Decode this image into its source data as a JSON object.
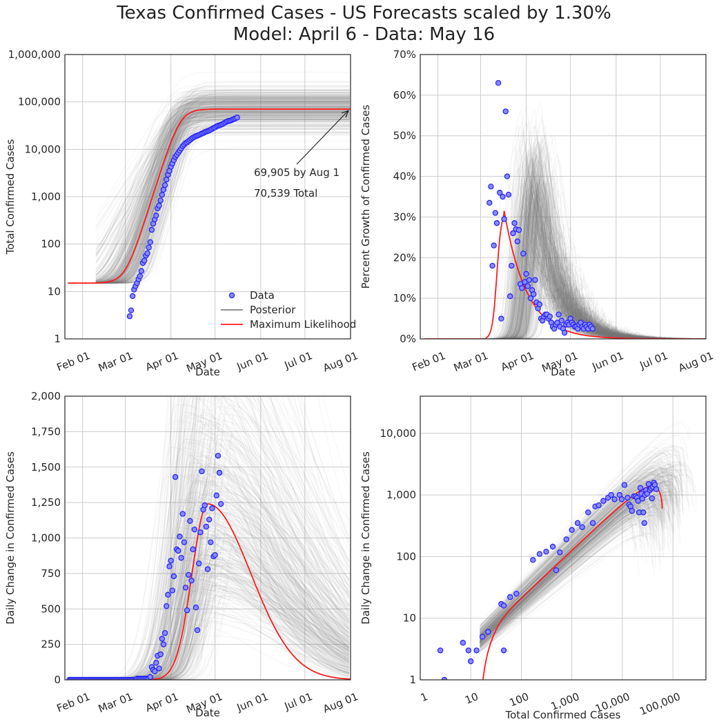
{
  "title_line1": "Texas Confirmed Cases - US Forecasts scaled by 1.30%",
  "title_line2": "Model: April 6 - Data: May 16",
  "colors": {
    "data_edge": "#1f1fff",
    "data_fill": "#8a8aff",
    "posterior": "#808080",
    "ml": "#ff1a1a",
    "grid": "#cccccc"
  },
  "chart_data": [
    {
      "id": "total",
      "type": "line",
      "xlabel": "Date",
      "ylabel": "Total Confirmed Cases",
      "yscale": "log",
      "ylim": [
        1,
        1000000
      ],
      "xlim": [
        "2020-01-20",
        "2020-08-01"
      ],
      "x_ticks": [
        "Feb 01",
        "Mar 01",
        "Apr 01",
        "May 01",
        "Jun 01",
        "Jul 01",
        "Aug 01"
      ],
      "y_ticks": [
        "1",
        "10",
        "100",
        "1,000",
        "10,000",
        "100,000",
        "1,000,000"
      ],
      "legend": [
        "Data",
        "Posterior",
        "Maximum Likelihood"
      ],
      "legend_position": "lower right",
      "annotations": [
        "69,905 by Aug 1",
        "70,539 Total"
      ],
      "data_points": [
        [
          "2020-03-04",
          3
        ],
        [
          "2020-03-05",
          4
        ],
        [
          "2020-03-06",
          8
        ],
        [
          "2020-03-07",
          11
        ],
        [
          "2020-03-08",
          13
        ],
        [
          "2020-03-09",
          15
        ],
        [
          "2020-03-10",
          18
        ],
        [
          "2020-03-11",
          21
        ],
        [
          "2020-03-12",
          27
        ],
        [
          "2020-03-13",
          40
        ],
        [
          "2020-03-14",
          45
        ],
        [
          "2020-03-15",
          57
        ],
        [
          "2020-03-16",
          64
        ],
        [
          "2020-03-17",
          85
        ],
        [
          "2020-03-18",
          110
        ],
        [
          "2020-03-19",
          200
        ],
        [
          "2020-03-20",
          270
        ],
        [
          "2020-03-21",
          330
        ],
        [
          "2020-03-22",
          400
        ],
        [
          "2020-03-23",
          570
        ],
        [
          "2020-03-24",
          650
        ],
        [
          "2020-03-25",
          830
        ],
        [
          "2020-03-26",
          1100
        ],
        [
          "2020-03-27",
          1400
        ],
        [
          "2020-03-28",
          1750
        ],
        [
          "2020-03-29",
          2300
        ],
        [
          "2020-03-30",
          2900
        ],
        [
          "2020-03-31",
          3500
        ],
        [
          "2020-04-01",
          4300
        ],
        [
          "2020-04-02",
          5000
        ],
        [
          "2020-04-03",
          5900
        ],
        [
          "2020-04-04",
          6900
        ],
        [
          "2020-04-05",
          7600
        ],
        [
          "2020-04-06",
          8500
        ],
        [
          "2020-04-07",
          9400
        ],
        [
          "2020-04-08",
          10400
        ],
        [
          "2020-04-09",
          11600
        ],
        [
          "2020-04-10",
          12500
        ],
        [
          "2020-04-11",
          13500
        ],
        [
          "2020-04-12",
          14000
        ],
        [
          "2020-04-13",
          14900
        ],
        [
          "2020-04-14",
          15700
        ],
        [
          "2020-04-15",
          16700
        ],
        [
          "2020-04-16",
          17500
        ],
        [
          "2020-04-17",
          18300
        ],
        [
          "2020-04-18",
          19000
        ],
        [
          "2020-04-19",
          19500
        ],
        [
          "2020-04-20",
          20000
        ],
        [
          "2020-04-21",
          20700
        ],
        [
          "2020-04-22",
          21500
        ],
        [
          "2020-04-23",
          22000
        ],
        [
          "2020-04-24",
          23000
        ],
        [
          "2020-04-25",
          23700
        ],
        [
          "2020-04-26",
          24300
        ],
        [
          "2020-04-27",
          25000
        ],
        [
          "2020-04-28",
          25900
        ],
        [
          "2020-04-29",
          27000
        ],
        [
          "2020-04-30",
          28100
        ],
        [
          "2020-05-01",
          29000
        ],
        [
          "2020-05-02",
          30500
        ],
        [
          "2020-05-03",
          31500
        ],
        [
          "2020-05-04",
          32000
        ],
        [
          "2020-05-05",
          33000
        ],
        [
          "2020-05-06",
          34000
        ],
        [
          "2020-05-07",
          35500
        ],
        [
          "2020-05-08",
          37000
        ],
        [
          "2020-05-09",
          38500
        ],
        [
          "2020-05-10",
          39500
        ],
        [
          "2020-05-11",
          40000
        ],
        [
          "2020-05-12",
          41000
        ],
        [
          "2020-05-13",
          42500
        ],
        [
          "2020-05-14",
          43800
        ],
        [
          "2020-05-15",
          45200
        ],
        [
          "2020-05-16",
          46900
        ]
      ],
      "ml_curve": {
        "model": "logistic",
        "floor": 15,
        "K": 70539,
        "r": 0.23,
        "t0": "2020-04-07",
        "start": "2020-01-22"
      }
    },
    {
      "id": "growth",
      "type": "line",
      "xlabel": "Date",
      "ylabel": "Percent Growth of Confirmed Cases",
      "ylim": [
        0,
        70
      ],
      "xlim": [
        "2020-01-20",
        "2020-08-01"
      ],
      "x_ticks": [
        "Feb 01",
        "Mar 01",
        "Apr 01",
        "May 01",
        "Jun 01",
        "Jul 01",
        "Aug 01"
      ],
      "y_ticks": [
        "0%",
        "10%",
        "20%",
        "30%",
        "40%",
        "50%",
        "60%",
        "70%"
      ],
      "data_points": [
        [
          "2020-03-07",
          33.5
        ],
        [
          "2020-03-08",
          37.5
        ],
        [
          "2020-03-09",
          18
        ],
        [
          "2020-03-10",
          23
        ],
        [
          "2020-03-11",
          31
        ],
        [
          "2020-03-12",
          28.5
        ],
        [
          "2020-03-13",
          63
        ],
        [
          "2020-03-14",
          36
        ],
        [
          "2020-03-15",
          5
        ],
        [
          "2020-03-16",
          35
        ],
        [
          "2020-03-17",
          29.5
        ],
        [
          "2020-03-18",
          56
        ],
        [
          "2020-03-19",
          40
        ],
        [
          "2020-03-20",
          35.5
        ],
        [
          "2020-03-21",
          10.5
        ],
        [
          "2020-03-22",
          18
        ],
        [
          "2020-03-23",
          26
        ],
        [
          "2020-03-24",
          28.5
        ],
        [
          "2020-03-25",
          27
        ],
        [
          "2020-03-26",
          24
        ],
        [
          "2020-03-27",
          26.8
        ],
        [
          "2020-03-28",
          13.5
        ],
        [
          "2020-03-29",
          12.5
        ],
        [
          "2020-03-30",
          21
        ],
        [
          "2020-03-31",
          14
        ],
        [
          "2020-04-01",
          16
        ],
        [
          "2020-04-02",
          13
        ],
        [
          "2020-04-03",
          14.5
        ],
        [
          "2020-04-04",
          10
        ],
        [
          "2020-04-05",
          12
        ],
        [
          "2020-04-06",
          11
        ],
        [
          "2020-04-07",
          14.5
        ],
        [
          "2020-04-08",
          9
        ],
        [
          "2020-04-09",
          7.5
        ],
        [
          "2020-04-10",
          8.5
        ],
        [
          "2020-04-11",
          5
        ],
        [
          "2020-04-12",
          4.5
        ],
        [
          "2020-04-13",
          5.5
        ],
        [
          "2020-04-14",
          6
        ],
        [
          "2020-04-15",
          6
        ],
        [
          "2020-04-16",
          5
        ],
        [
          "2020-04-17",
          5.5
        ],
        [
          "2020-04-18",
          4
        ],
        [
          "2020-04-19",
          3
        ],
        [
          "2020-04-20",
          2.5
        ],
        [
          "2020-04-21",
          3.5
        ],
        [
          "2020-04-22",
          4
        ],
        [
          "2020-04-23",
          6
        ],
        [
          "2020-04-24",
          3
        ],
        [
          "2020-04-25",
          4.5
        ],
        [
          "2020-04-26",
          2.5
        ],
        [
          "2020-04-27",
          1.5
        ],
        [
          "2020-04-28",
          3.5
        ],
        [
          "2020-04-29",
          4
        ],
        [
          "2020-04-30",
          3.5
        ],
        [
          "2020-05-01",
          5
        ],
        [
          "2020-05-02",
          4
        ],
        [
          "2020-05-03",
          3.5
        ],
        [
          "2020-05-04",
          3
        ],
        [
          "2020-05-05",
          3
        ],
        [
          "2020-05-06",
          2.5
        ],
        [
          "2020-05-07",
          3.5
        ],
        [
          "2020-05-08",
          4
        ],
        [
          "2020-05-09",
          3
        ],
        [
          "2020-05-10",
          2.5
        ],
        [
          "2020-05-11",
          3.5
        ],
        [
          "2020-05-12",
          3
        ],
        [
          "2020-05-13",
          2.5
        ],
        [
          "2020-05-14",
          3.5
        ],
        [
          "2020-05-15",
          3
        ],
        [
          "2020-05-16",
          2.5
        ]
      ]
    },
    {
      "id": "daily",
      "type": "line",
      "xlabel": "Date",
      "ylabel": "Daily Change in Confirmed Cases",
      "ylim": [
        0,
        2000
      ],
      "xlim": [
        "2020-01-20",
        "2020-08-01"
      ],
      "x_ticks": [
        "Feb 01",
        "Mar 01",
        "Apr 01",
        "May 01",
        "Jun 01",
        "Jul 01",
        "Aug 01"
      ],
      "y_ticks": [
        "0",
        "250",
        "500",
        "750",
        "1,000",
        "1,250",
        "1,500",
        "1,750",
        "2,000"
      ],
      "data_points": [
        [
          "2020-03-18",
          20
        ],
        [
          "2020-03-19",
          90
        ],
        [
          "2020-03-20",
          70
        ],
        [
          "2020-03-21",
          60
        ],
        [
          "2020-03-22",
          120
        ],
        [
          "2020-03-23",
          170
        ],
        [
          "2020-03-24",
          80
        ],
        [
          "2020-03-25",
          180
        ],
        [
          "2020-03-26",
          290
        ],
        [
          "2020-03-27",
          250
        ],
        [
          "2020-03-28",
          330
        ],
        [
          "2020-03-29",
          520
        ],
        [
          "2020-03-30",
          600
        ],
        [
          "2020-03-31",
          800
        ],
        [
          "2020-04-01",
          840
        ],
        [
          "2020-04-02",
          630
        ],
        [
          "2020-04-03",
          730
        ],
        [
          "2020-04-04",
          1430
        ],
        [
          "2020-04-05",
          920
        ],
        [
          "2020-04-06",
          910
        ],
        [
          "2020-04-07",
          1010
        ],
        [
          "2020-04-08",
          860
        ],
        [
          "2020-04-09",
          1170
        ],
        [
          "2020-04-10",
          970
        ],
        [
          "2020-04-11",
          650
        ],
        [
          "2020-04-12",
          490
        ],
        [
          "2020-04-13",
          740
        ],
        [
          "2020-04-14",
          1120
        ],
        [
          "2020-04-15",
          700
        ],
        [
          "2020-04-16",
          920
        ],
        [
          "2020-04-17",
          1060
        ],
        [
          "2020-04-18",
          510
        ],
        [
          "2020-04-19",
          350
        ],
        [
          "2020-04-20",
          820
        ],
        [
          "2020-04-21",
          1040
        ],
        [
          "2020-04-22",
          1470
        ],
        [
          "2020-04-23",
          1200
        ],
        [
          "2020-04-24",
          1230
        ],
        [
          "2020-04-25",
          1080
        ],
        [
          "2020-04-26",
          780
        ],
        [
          "2020-04-27",
          1130
        ],
        [
          "2020-04-28",
          970
        ],
        [
          "2020-04-29",
          1210
        ],
        [
          "2020-04-30",
          870
        ],
        [
          "2020-05-01",
          880
        ],
        [
          "2020-05-02",
          1300
        ],
        [
          "2020-05-03",
          1580
        ],
        [
          "2020-05-04",
          1460
        ],
        [
          "2020-05-05",
          1240
        ]
      ],
      "ml_curve": {
        "derivative_of": "total"
      }
    },
    {
      "id": "phase",
      "type": "scatter",
      "xlabel": "Total Confirmed Cases",
      "ylabel": "Daily Change in Confirmed Cases",
      "xscale": "log",
      "yscale": "log",
      "xlim": [
        1,
        450000
      ],
      "ylim": [
        1,
        40000
      ],
      "x_ticks": [
        "1",
        "10",
        "100",
        "1,000",
        "10,000",
        "100,000"
      ],
      "y_ticks": [
        "1",
        "10",
        "100",
        "1,000",
        "10,000"
      ],
      "data_points": [
        [
          2.5,
          3
        ],
        [
          3,
          1
        ],
        [
          7,
          4
        ],
        [
          9,
          3
        ],
        [
          10,
          2
        ],
        [
          13,
          3
        ],
        [
          17,
          5
        ],
        [
          22,
          6
        ],
        [
          40,
          17
        ],
        [
          45,
          16
        ],
        [
          45,
          3
        ],
        [
          60,
          22
        ],
        [
          80,
          25
        ],
        [
          170,
          88
        ],
        [
          230,
          110
        ],
        [
          310,
          120
        ],
        [
          420,
          145
        ],
        [
          490,
          60
        ],
        [
          580,
          117
        ],
        [
          780,
          190
        ],
        [
          1000,
          270
        ],
        [
          1300,
          350
        ],
        [
          1600,
          300
        ],
        [
          2100,
          520
        ],
        [
          2600,
          350
        ],
        [
          2900,
          650
        ],
        [
          3400,
          680
        ],
        [
          4200,
          800
        ],
        [
          5200,
          900
        ],
        [
          6000,
          1000
        ],
        [
          7000,
          850
        ],
        [
          8800,
          1000
        ],
        [
          9700,
          850
        ],
        [
          11000,
          1450
        ],
        [
          12700,
          900
        ],
        [
          13600,
          700
        ],
        [
          14500,
          650
        ],
        [
          15500,
          550
        ],
        [
          17000,
          950
        ],
        [
          18300,
          950
        ],
        [
          19500,
          900
        ],
        [
          20500,
          800
        ],
        [
          21400,
          520
        ],
        [
          22700,
          1300
        ],
        [
          23800,
          1050
        ],
        [
          24800,
          870
        ],
        [
          26000,
          520
        ],
        [
          27200,
          350
        ],
        [
          28100,
          1000
        ],
        [
          29500,
          1200
        ],
        [
          31000,
          1050
        ],
        [
          33000,
          1500
        ],
        [
          35000,
          1200
        ],
        [
          37000,
          1280
        ],
        [
          38500,
          880
        ],
        [
          40000,
          1350
        ],
        [
          42000,
          1580
        ],
        [
          43800,
          1460
        ],
        [
          46900,
          1240
        ]
      ]
    }
  ]
}
